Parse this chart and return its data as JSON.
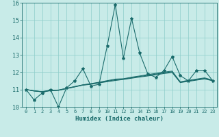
{
  "xlabel": "Humidex (Indice chaleur)",
  "ylabel": "",
  "background_color": "#c8ebe8",
  "grid_color": "#8ececa",
  "line_color": "#1a6b6b",
  "xlim": [
    -0.5,
    23.5
  ],
  "ylim": [
    10,
    16
  ],
  "yticks": [
    10,
    11,
    12,
    13,
    14,
    15,
    16
  ],
  "xticks": [
    0,
    1,
    2,
    3,
    4,
    5,
    6,
    7,
    8,
    9,
    10,
    11,
    12,
    13,
    14,
    15,
    16,
    17,
    18,
    19,
    20,
    21,
    22,
    23
  ],
  "series": [
    [
      11.0,
      10.4,
      10.8,
      11.0,
      10.0,
      11.1,
      11.5,
      12.2,
      11.2,
      11.3,
      13.5,
      15.9,
      12.8,
      15.1,
      13.1,
      11.9,
      11.7,
      12.1,
      12.9,
      11.8,
      11.5,
      12.1,
      12.1,
      11.5
    ],
    [
      11.0,
      10.93,
      10.86,
      10.93,
      10.95,
      11.05,
      11.15,
      11.25,
      11.3,
      11.38,
      11.45,
      11.52,
      11.58,
      11.65,
      11.72,
      11.78,
      11.85,
      11.92,
      11.98,
      11.4,
      11.47,
      11.54,
      11.61,
      11.5
    ],
    [
      11.0,
      10.92,
      10.87,
      10.94,
      10.96,
      11.06,
      11.16,
      11.26,
      11.32,
      11.4,
      11.48,
      11.56,
      11.6,
      11.68,
      11.75,
      11.82,
      11.89,
      11.96,
      12.02,
      11.42,
      11.5,
      11.57,
      11.64,
      11.52
    ],
    [
      11.0,
      10.91,
      10.88,
      10.95,
      10.97,
      11.07,
      11.17,
      11.27,
      11.34,
      11.42,
      11.51,
      11.6,
      11.62,
      11.71,
      11.78,
      11.86,
      11.93,
      12.0,
      12.06,
      11.44,
      11.53,
      11.6,
      11.67,
      11.54
    ]
  ],
  "marker": "*",
  "marker_size": 3,
  "line_width": 0.8
}
